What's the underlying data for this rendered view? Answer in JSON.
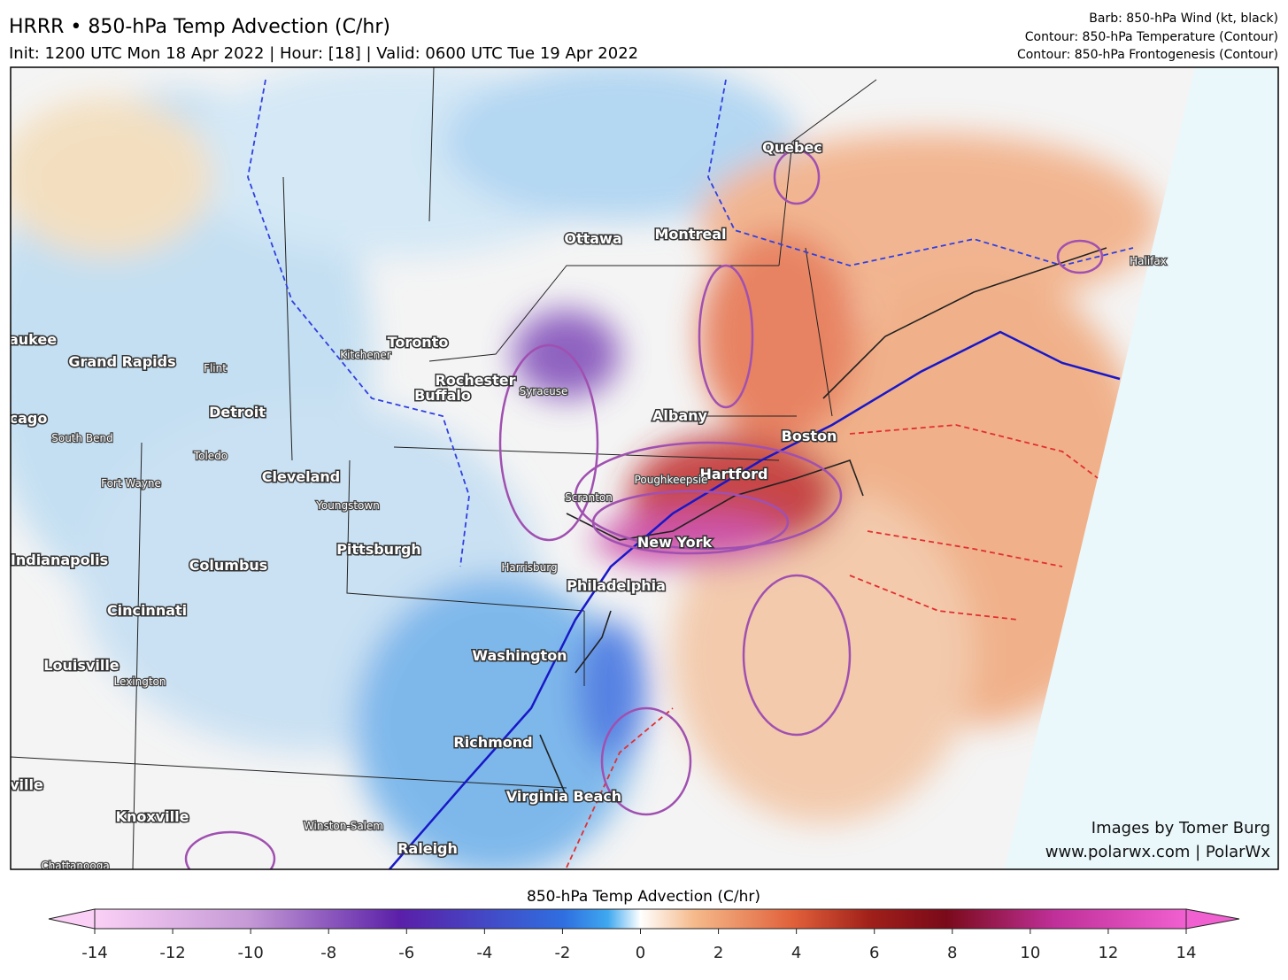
{
  "header": {
    "title": "HRRR • 850-hPa Temp Advection (C/hr)",
    "subtitle": "Init: 1200 UTC Mon 18 Apr 2022 | Hour: [18] | Valid: 0600 UTC Tue 19 Apr 2022",
    "legend": [
      "Barb: 850-hPa Wind (kt, black)",
      "Contour: 850-hPa Temperature (Contour)",
      "Contour: 850-hPa Frontogenesis (Contour)"
    ]
  },
  "cities": [
    "Quebec",
    "Ottawa",
    "Montreal",
    "Toronto",
    "Kitchener",
    "Rochester",
    "Buffalo",
    "Syracuse",
    "Albany",
    "Boston",
    "Hartford",
    "Poughkeepsie",
    "Scranton",
    "New York",
    "Philadelphia",
    "Harrisburg",
    "Washington",
    "Richmond",
    "Virginia Beach",
    "Raleigh",
    "Winston-Salem",
    "Knoxville",
    "Chattanooga",
    "Lexington",
    "Louisville",
    "Cincinnati",
    "Indianapolis",
    "Columbus",
    "Pittsburgh",
    "Youngstown",
    "Cleveland",
    "Toledo",
    "Detroit",
    "Fort Wayne",
    "South Bend",
    "Flint",
    "Grand Rapids",
    "aukee",
    "cago",
    "ville",
    "Halifax"
  ],
  "credits": [
    "Images by Tomer Burg",
    "www.polarwx.com | PolarWx"
  ],
  "colorbar": {
    "label": "850-hPa Temp Advection (C/hr)",
    "range": [
      -14,
      14
    ],
    "ticks": [
      -14,
      -12,
      -10,
      -8,
      -6,
      -4,
      -2,
      0,
      2,
      4,
      6,
      8,
      10,
      12,
      14
    ]
  }
}
